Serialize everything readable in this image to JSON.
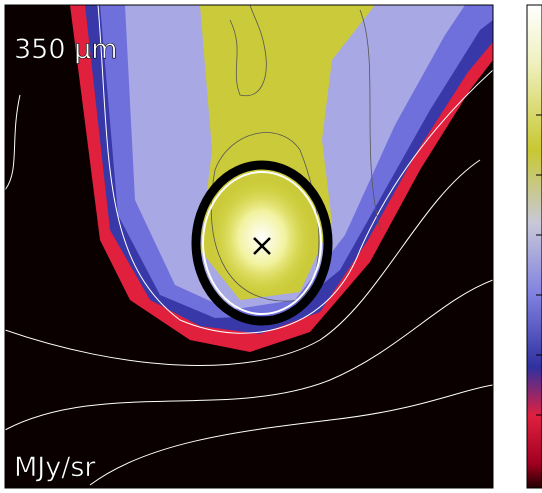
{
  "panel_label": "350 μm",
  "unit_label": "MJy/sr"
}
